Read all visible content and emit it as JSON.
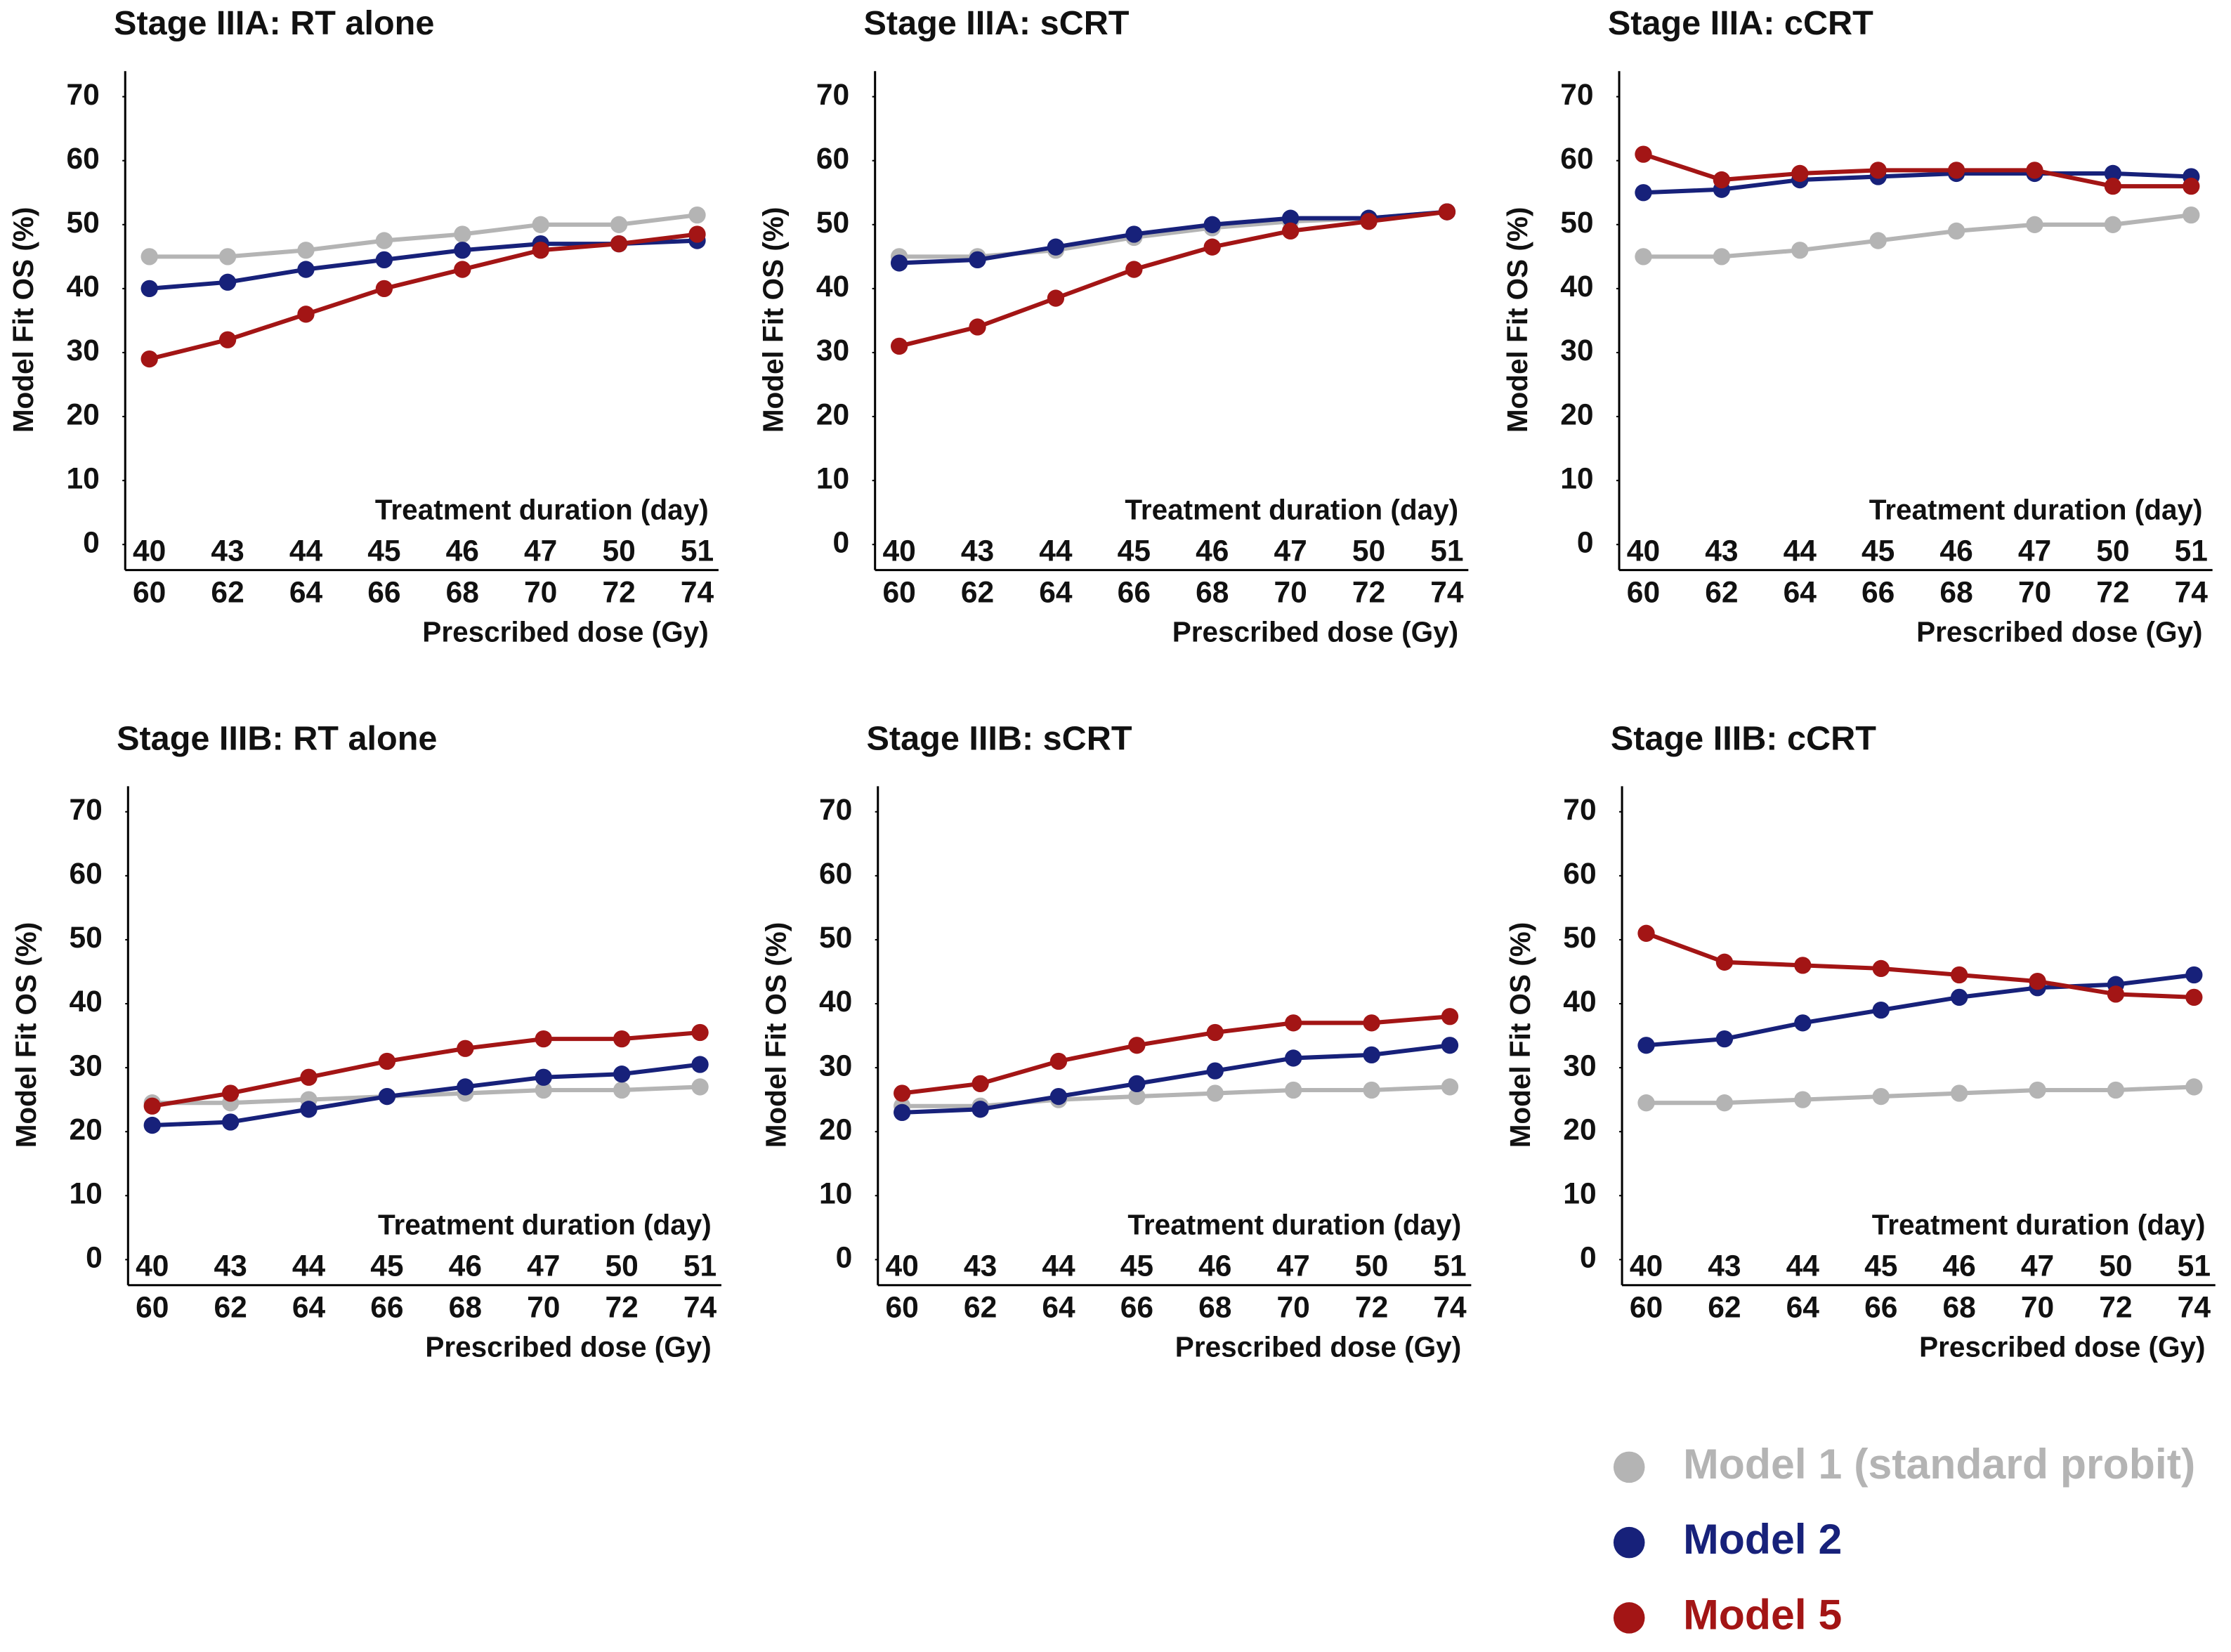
{
  "chart_data": [
    {
      "type": "line",
      "title": "Stage IIIA: RT alone",
      "y_label": "Model Fit OS (%)",
      "x_label": "Prescribed dose (Gy)",
      "x2_label": "Treatment duration (day)",
      "categories": [
        60,
        62,
        64,
        66,
        68,
        70,
        72,
        74
      ],
      "durations": [
        40,
        43,
        44,
        45,
        46,
        47,
        50,
        51
      ],
      "ylim": [
        -4,
        74
      ],
      "yticks": [
        0,
        10,
        20,
        30,
        40,
        50,
        60,
        70
      ],
      "series": [
        {
          "name": "Model 1 (standard probit)",
          "color": "#b4b4b4",
          "values": [
            45,
            45,
            46,
            47.5,
            48.5,
            50,
            50,
            51.5
          ]
        },
        {
          "name": "Model 2",
          "color": "#17217a",
          "values": [
            40,
            41,
            43,
            44.5,
            46,
            47,
            47,
            47.5
          ]
        },
        {
          "name": "Model 5",
          "color": "#a31515",
          "values": [
            29,
            32,
            36,
            40,
            43,
            46,
            47,
            48.5
          ]
        }
      ]
    },
    {
      "type": "line",
      "title": "Stage IIIA: sCRT",
      "y_label": "Model Fit OS (%)",
      "x_label": "Prescribed dose (Gy)",
      "x2_label": "Treatment duration (day)",
      "categories": [
        60,
        62,
        64,
        66,
        68,
        70,
        72,
        74
      ],
      "durations": [
        40,
        43,
        44,
        45,
        46,
        47,
        50,
        51
      ],
      "ylim": [
        -4,
        74
      ],
      "yticks": [
        0,
        10,
        20,
        30,
        40,
        50,
        60,
        70
      ],
      "series": [
        {
          "name": "Model 1 (standard probit)",
          "color": "#b4b4b4",
          "values": [
            45,
            45,
            46,
            48,
            49.5,
            50.5,
            51,
            52
          ]
        },
        {
          "name": "Model 2",
          "color": "#17217a",
          "values": [
            44,
            44.5,
            46.5,
            48.5,
            50,
            51,
            51,
            52
          ]
        },
        {
          "name": "Model 5",
          "color": "#a31515",
          "values": [
            31,
            34,
            38.5,
            43,
            46.5,
            49,
            50.5,
            52
          ]
        }
      ]
    },
    {
      "type": "line",
      "title": "Stage IIIA: cCRT",
      "y_label": "Model Fit OS (%)",
      "x_label": "Prescribed dose (Gy)",
      "x2_label": "Treatment duration (day)",
      "categories": [
        60,
        62,
        64,
        66,
        68,
        70,
        72,
        74
      ],
      "durations": [
        40,
        43,
        44,
        45,
        46,
        47,
        50,
        51
      ],
      "ylim": [
        -4,
        74
      ],
      "yticks": [
        0,
        10,
        20,
        30,
        40,
        50,
        60,
        70
      ],
      "series": [
        {
          "name": "Model 1 (standard probit)",
          "color": "#b4b4b4",
          "values": [
            45,
            45,
            46,
            47.5,
            49,
            50,
            50,
            51.5
          ]
        },
        {
          "name": "Model 2",
          "color": "#17217a",
          "values": [
            55,
            55.5,
            57,
            57.5,
            58,
            58,
            58,
            57.5
          ]
        },
        {
          "name": "Model 5",
          "color": "#a31515",
          "values": [
            61,
            57,
            58,
            58.5,
            58.5,
            58.5,
            56,
            56
          ]
        }
      ]
    },
    {
      "type": "line",
      "title": "Stage IIIB: RT alone",
      "y_label": "Model Fit OS (%)",
      "x_label": "Prescribed dose (Gy)",
      "x2_label": "Treatment duration (day)",
      "categories": [
        60,
        62,
        64,
        66,
        68,
        70,
        72,
        74
      ],
      "durations": [
        40,
        43,
        44,
        45,
        46,
        47,
        50,
        51
      ],
      "ylim": [
        -4,
        74
      ],
      "yticks": [
        0,
        10,
        20,
        30,
        40,
        50,
        60,
        70
      ],
      "series": [
        {
          "name": "Model 1 (standard probit)",
          "color": "#b4b4b4",
          "values": [
            24.5,
            24.5,
            25,
            25.5,
            26,
            26.5,
            26.5,
            27
          ]
        },
        {
          "name": "Model 2",
          "color": "#17217a",
          "values": [
            21,
            21.5,
            23.5,
            25.5,
            27,
            28.5,
            29,
            30.5
          ]
        },
        {
          "name": "Model 5",
          "color": "#a31515",
          "values": [
            24,
            26,
            28.5,
            31,
            33,
            34.5,
            34.5,
            35.5
          ]
        }
      ]
    },
    {
      "type": "line",
      "title": "Stage IIIB: sCRT",
      "y_label": "Model Fit OS (%)",
      "x_label": "Prescribed dose (Gy)",
      "x2_label": "Treatment duration (day)",
      "categories": [
        60,
        62,
        64,
        66,
        68,
        70,
        72,
        74
      ],
      "durations": [
        40,
        43,
        44,
        45,
        46,
        47,
        50,
        51
      ],
      "ylim": [
        -4,
        74
      ],
      "yticks": [
        0,
        10,
        20,
        30,
        40,
        50,
        60,
        70
      ],
      "series": [
        {
          "name": "Model 1 (standard probit)",
          "color": "#b4b4b4",
          "values": [
            24,
            24,
            25,
            25.5,
            26,
            26.5,
            26.5,
            27
          ]
        },
        {
          "name": "Model 2",
          "color": "#17217a",
          "values": [
            23,
            23.5,
            25.5,
            27.5,
            29.5,
            31.5,
            32,
            33.5
          ]
        },
        {
          "name": "Model 5",
          "color": "#a31515",
          "values": [
            26,
            27.5,
            31,
            33.5,
            35.5,
            37,
            37,
            38
          ]
        }
      ]
    },
    {
      "type": "line",
      "title": "Stage IIIB: cCRT",
      "y_label": "Model Fit OS (%)",
      "x_label": "Prescribed dose (Gy)",
      "x2_label": "Treatment duration (day)",
      "categories": [
        60,
        62,
        64,
        66,
        68,
        70,
        72,
        74
      ],
      "durations": [
        40,
        43,
        44,
        45,
        46,
        47,
        50,
        51
      ],
      "ylim": [
        -4,
        74
      ],
      "yticks": [
        0,
        10,
        20,
        30,
        40,
        50,
        60,
        70
      ],
      "series": [
        {
          "name": "Model 1 (standard probit)",
          "color": "#b4b4b4",
          "values": [
            24.5,
            24.5,
            25,
            25.5,
            26,
            26.5,
            26.5,
            27
          ]
        },
        {
          "name": "Model 2",
          "color": "#17217a",
          "values": [
            33.5,
            34.5,
            37,
            39,
            41,
            42.5,
            43,
            44.5
          ]
        },
        {
          "name": "Model 5",
          "color": "#a31515",
          "values": [
            51,
            46.5,
            46,
            45.5,
            44.5,
            43.5,
            41.5,
            41
          ]
        }
      ]
    }
  ]
}
